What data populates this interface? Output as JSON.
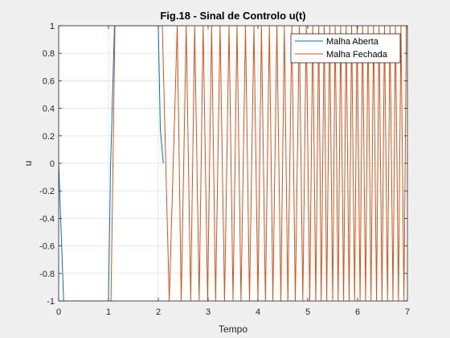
{
  "chart_data": {
    "type": "line",
    "title": "Fig.18 - Sinal de Controlo u(t)",
    "xlabel": "Tempo",
    "ylabel": "u",
    "xlim": [
      0,
      7
    ],
    "ylim": [
      -1,
      1
    ],
    "xticks": [
      0,
      1,
      2,
      3,
      4,
      5,
      6,
      7
    ],
    "xtick_labels": [
      "0",
      "1",
      "2",
      "3",
      "4",
      "5",
      "6",
      "7"
    ],
    "yticks": [
      -1,
      -0.8,
      -0.6,
      -0.4,
      -0.2,
      0,
      0.2,
      0.4,
      0.6,
      0.8,
      1
    ],
    "ytick_labels": [
      "-1",
      "-0.8",
      "-0.6",
      "-0.4",
      "-0.2",
      "0",
      "0.2",
      "0.4",
      "0.6",
      "0.8",
      "1"
    ],
    "grid": true,
    "legend_position": "top-right",
    "series": [
      {
        "name": "Malha Aberta",
        "color": "#0072bd",
        "x": [
          0,
          0.02,
          0.1,
          1.0,
          1.04,
          1.12,
          2.0,
          2.04,
          2.1
        ],
        "y": [
          0,
          -0.2,
          -1,
          -1,
          -0.05,
          1,
          1,
          0.25,
          0
        ]
      },
      {
        "name": "Malha Fechada",
        "color": "#d95319",
        "x": [
          0.04,
          0.1,
          1.05,
          1.13,
          2.08,
          2.22,
          2.38,
          2.46,
          2.56,
          2.65,
          2.73,
          2.82,
          2.9,
          2.99,
          3.07,
          3.15,
          3.24,
          3.33,
          3.42,
          3.5,
          3.58,
          3.66,
          3.75,
          3.83,
          3.92,
          4.0,
          4.07,
          4.15,
          4.23,
          4.3,
          4.38,
          4.46,
          4.53,
          4.6,
          4.68,
          4.75,
          4.83,
          4.9,
          4.97,
          5.04,
          5.1,
          5.16,
          5.22,
          5.27,
          5.33,
          5.38,
          5.44,
          5.5,
          5.55,
          5.61,
          5.66,
          5.72,
          5.77,
          5.83,
          5.88,
          5.94,
          5.99,
          6.05,
          6.1,
          6.16,
          6.21,
          6.27,
          6.32,
          6.38,
          6.43,
          6.49,
          6.54,
          6.6,
          6.65,
          6.71,
          6.76,
          6.82,
          6.87,
          6.93,
          6.98
        ],
        "y": [
          -1,
          -1,
          -1,
          1,
          1,
          -1,
          1,
          -1,
          1,
          -1,
          1,
          -1,
          1,
          -1,
          1,
          -1,
          1,
          -1,
          1,
          -1,
          1,
          -1,
          1,
          -1,
          1,
          -1,
          1,
          -1,
          1,
          -1,
          1,
          -1,
          1,
          -1,
          1,
          -1,
          1,
          -1,
          1,
          -1,
          1,
          -1,
          1,
          -1,
          1,
          -1,
          1,
          -1,
          1,
          -1,
          1,
          -1,
          1,
          -1,
          1,
          -1,
          1,
          -1,
          1,
          -1,
          1,
          -1,
          1,
          -1,
          1,
          -1,
          1,
          -1,
          1,
          -1,
          1,
          -1,
          1,
          -1,
          1
        ]
      }
    ]
  }
}
